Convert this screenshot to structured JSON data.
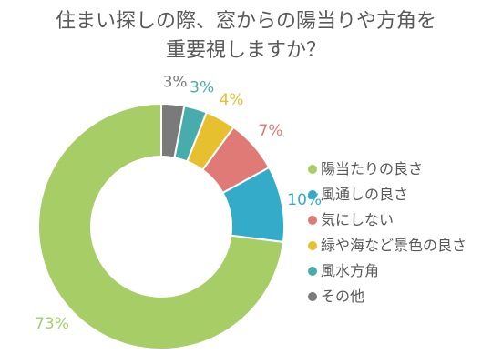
{
  "chart_data": {
    "type": "pie",
    "subtype": "donut",
    "title_lines": [
      "住まい探しの際、窓からの陽当りや方角を",
      "重要視しますか？"
    ],
    "unit": "%",
    "legend_position": "right",
    "series": [
      {
        "name": "陽当たりの良さ",
        "value": 73,
        "label": "73%",
        "color": "#a6cd66"
      },
      {
        "name": "風通しの良さ",
        "value": 10,
        "label": "10%",
        "color": "#33abc9"
      },
      {
        "name": "気にしない",
        "value": 7,
        "label": "7%",
        "color": "#e07a76"
      },
      {
        "name": "緑や海など景色の良さ",
        "value": 4,
        "label": "4%",
        "color": "#e6c02f"
      },
      {
        "name": "風水方角",
        "value": 3,
        "label": "3%",
        "color": "#48acad"
      },
      {
        "name": "その他",
        "value": 3,
        "label": "3%",
        "color": "#7a7a7a"
      }
    ]
  }
}
